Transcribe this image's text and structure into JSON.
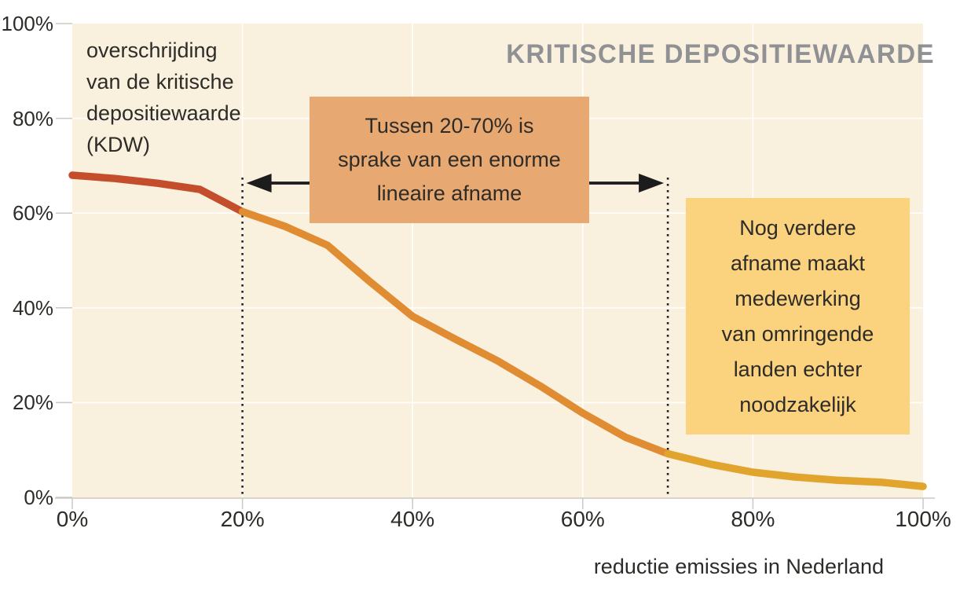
{
  "title": "KRITISCHE DEPOSITIEWAARDE",
  "y_axis_annotation": {
    "lines": [
      "overschrijding",
      "van de kritische",
      "depositiewaarde",
      "(KDW)"
    ]
  },
  "x_axis_title": "reductie emissies in Nederland",
  "annotations": {
    "linear_note": {
      "lines": [
        "Tussen 20-70% is",
        "sprake van een enorme",
        "lineaire afname"
      ],
      "background": "#e8a871"
    },
    "cooperation_note": {
      "lines": [
        "Nog verdere",
        "afname maakt",
        "medewerking",
        "van omringende",
        "landen echter",
        "noodzakelijk"
      ],
      "background": "#fbd27e"
    }
  },
  "chart_data": {
    "type": "line",
    "title": "KRITISCHE DEPOSITIEWAARDE",
    "xlabel": "reductie emissies in Nederland",
    "ylabel": "overschrijding van de kritische depositiewaarde (KDW)",
    "xlim": [
      0,
      100
    ],
    "ylim": [
      0,
      100
    ],
    "grid": true,
    "grid_x": [
      20,
      40,
      60,
      80
    ],
    "grid_y": [
      20,
      40,
      60,
      80
    ],
    "x_tick_values": [
      0,
      20,
      40,
      60,
      80,
      100
    ],
    "y_tick_values": [
      0,
      20,
      40,
      60,
      80,
      100
    ],
    "x_tick_labels": [
      "0%",
      "20%",
      "40%",
      "60%",
      "80%",
      "100%"
    ],
    "y_tick_labels": [
      "100%",
      "80%",
      "60%",
      "40%",
      "20%",
      "0%"
    ],
    "x": [
      0,
      5,
      10,
      15,
      20,
      25,
      30,
      35,
      40,
      45,
      50,
      55,
      60,
      65,
      70,
      75,
      80,
      85,
      90,
      95,
      100
    ],
    "values": [
      68,
      67.3,
      66.3,
      65,
      60.3,
      57.2,
      53.2,
      45.5,
      38.2,
      33.4,
      28.8,
      23.5,
      17.8,
      12.7,
      9.2,
      7,
      5.3,
      4.3,
      3.6,
      3.2,
      2.3
    ],
    "segments": [
      {
        "name": "overschrijding-0-20",
        "x_range": [
          0,
          20
        ],
        "color": "#c44e2c"
      },
      {
        "name": "lineaire-afname-20-70",
        "x_range": [
          20,
          70
        ],
        "color": "#e08c33"
      },
      {
        "name": "staart-70-100",
        "x_range": [
          70,
          100
        ],
        "color": "#e1a42d"
      }
    ],
    "reference_lines_x": [
      20,
      70
    ],
    "arrow_between_x": [
      20,
      70
    ]
  },
  "colors": {
    "plot_background": "#faf0de",
    "page_background": "#ffffff",
    "gridline": "#ffffff",
    "axis_tick": "#ccc9c2",
    "dotted_reference": "#222222",
    "arrow": "#1c1c1c",
    "text": "#2e2c29",
    "title_gray": "#8f9194"
  }
}
